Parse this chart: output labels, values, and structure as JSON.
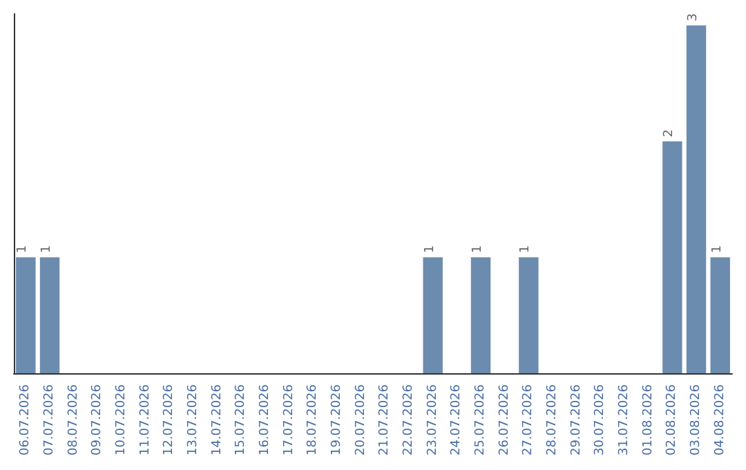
{
  "chart_data": {
    "type": "bar",
    "categories": [
      "06.07.2026",
      "07.07.2026",
      "08.07.2026",
      "09.07.2026",
      "10.07.2026",
      "11.07.2026",
      "12.07.2026",
      "13.07.2026",
      "14.07.2026",
      "15.07.2026",
      "16.07.2026",
      "17.07.2026",
      "18.07.2026",
      "19.07.2026",
      "20.07.2026",
      "21.07.2026",
      "22.07.2026",
      "23.07.2026",
      "24.07.2026",
      "25.07.2026",
      "26.07.2026",
      "27.07.2026",
      "28.07.2026",
      "29.07.2026",
      "30.07.2026",
      "31.07.2026",
      "01.08.2026",
      "02.08.2026",
      "03.08.2026",
      "04.08.2026"
    ],
    "values": [
      1,
      1,
      0,
      0,
      0,
      0,
      0,
      0,
      0,
      0,
      0,
      0,
      0,
      0,
      0,
      0,
      0,
      1,
      0,
      1,
      0,
      1,
      0,
      0,
      0,
      0,
      0,
      2,
      3,
      1
    ],
    "value_labels": [
      "1",
      "1",
      null,
      null,
      null,
      null,
      null,
      null,
      null,
      null,
      null,
      null,
      null,
      null,
      null,
      null,
      null,
      "1",
      null,
      "1",
      null,
      "1",
      null,
      null,
      null,
      null,
      null,
      "2",
      "3",
      "1"
    ],
    "color": "#6b8cae",
    "ylim": [
      0,
      3.1
    ],
    "tick_labels": "x"
  }
}
